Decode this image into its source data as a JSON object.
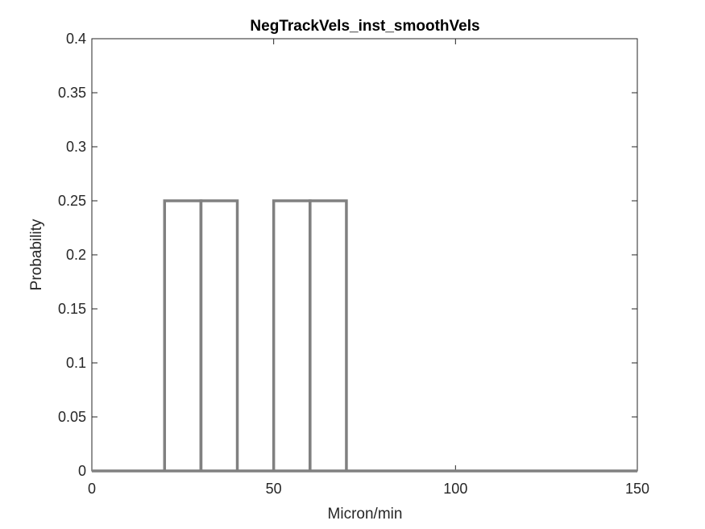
{
  "chart_data": {
    "type": "line",
    "title": "NegTrackVels_inst_smoothVels",
    "xlabel": "Micron/min",
    "ylabel": "Probability",
    "xlim": [
      0,
      150
    ],
    "ylim": [
      0,
      0.4
    ],
    "x_ticks": [
      0,
      50,
      100,
      150
    ],
    "x_tick_labels": [
      "0",
      "50",
      "100",
      "150"
    ],
    "y_ticks": [
      0,
      0.05,
      0.1,
      0.15,
      0.2,
      0.25,
      0.3,
      0.35,
      0.4
    ],
    "y_tick_labels": [
      "0",
      "0.05",
      "0.1",
      "0.15",
      "0.2",
      "0.25",
      "0.3",
      "0.35",
      "0.4"
    ],
    "grid": false,
    "series": [
      {
        "color": "#808080",
        "style": "stairs",
        "bin_edges": [
          0,
          10,
          20,
          30,
          40,
          50,
          60,
          70,
          80,
          90,
          100,
          110,
          120,
          130,
          140,
          150
        ],
        "values": [
          0,
          0,
          0.25,
          0.25,
          0,
          0.25,
          0.25,
          0,
          0,
          0,
          0,
          0,
          0,
          0,
          0
        ]
      }
    ]
  }
}
